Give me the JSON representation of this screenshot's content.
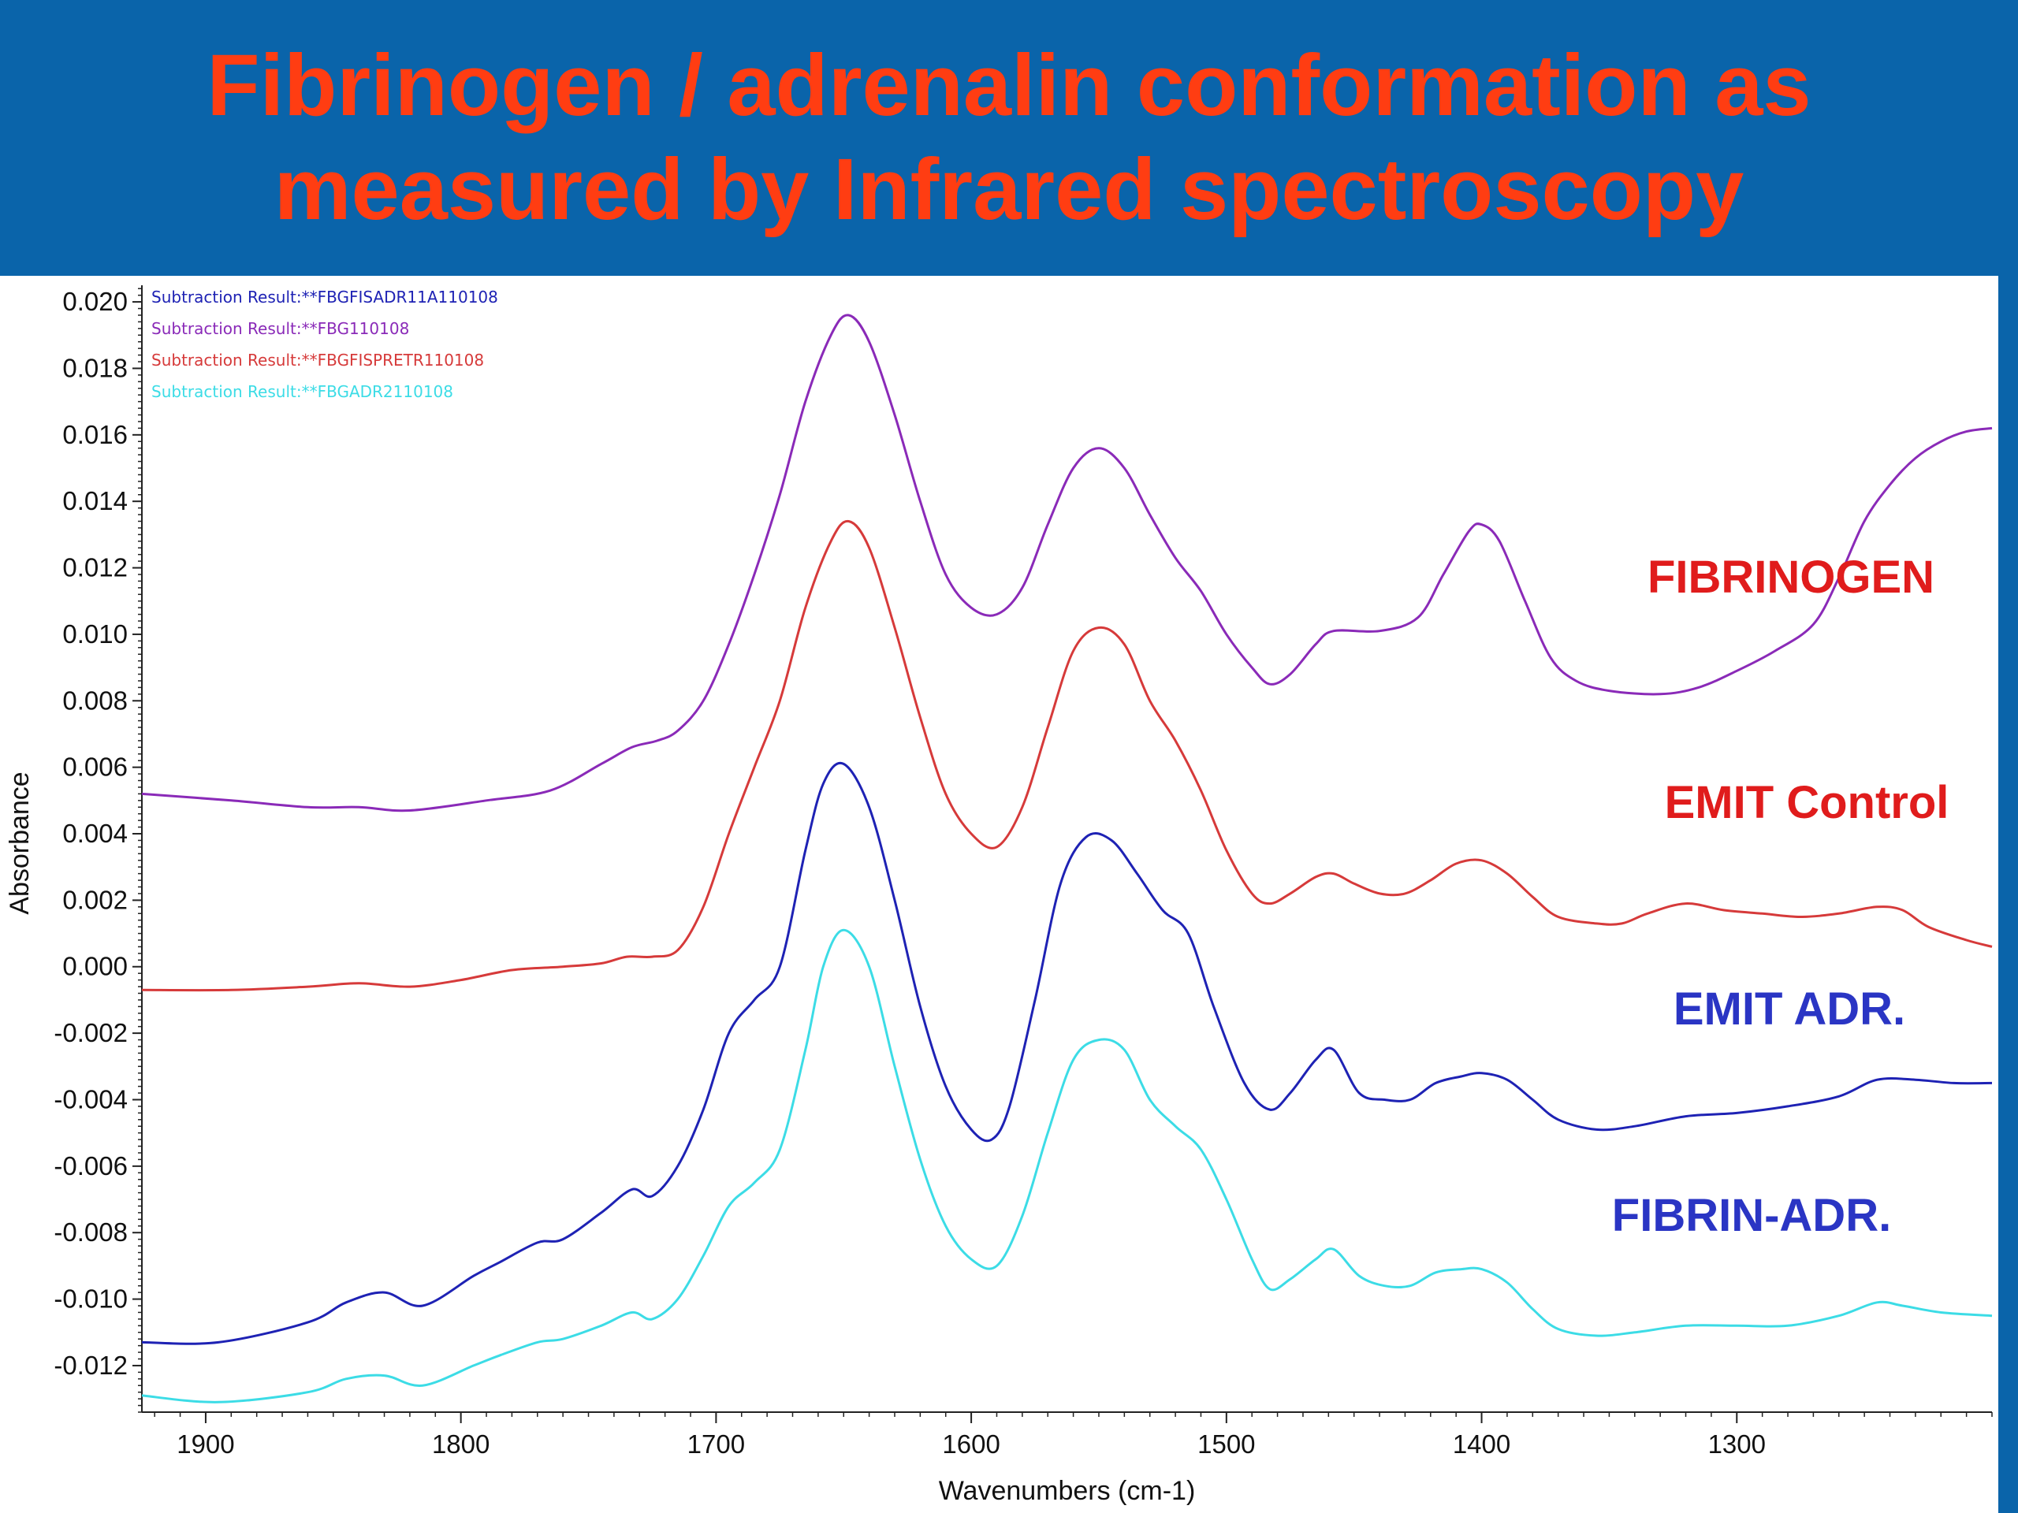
{
  "slide": {
    "title_line1": "Fibrinogen / adrenalin conformation as",
    "title_line2": "measured by Infrared spectroscopy",
    "title_color": "#ff3d12",
    "background": "#0a64aa"
  },
  "chart_data": {
    "type": "line",
    "title": "",
    "xlabel": "Wavenumbers (cm-1)",
    "ylabel": "Absorbance",
    "xlim": [
      1925,
      1200
    ],
    "ylim": [
      -0.0134,
      0.0205
    ],
    "x_reversed": true,
    "grid": false,
    "legend_position": "top-left",
    "x_ticks": [
      {
        "value": 1900,
        "label": "1900"
      },
      {
        "value": 1800,
        "label": "1800"
      },
      {
        "value": 1700,
        "label": "1700"
      },
      {
        "value": 1600,
        "label": "1600"
      },
      {
        "value": 1500,
        "label": "1500"
      },
      {
        "value": 1400,
        "label": "1400"
      },
      {
        "value": 1300,
        "label": "1300"
      }
    ],
    "y_ticks": [
      {
        "value": 0.02,
        "label": "0.020"
      },
      {
        "value": 0.018,
        "label": "0.018"
      },
      {
        "value": 0.016,
        "label": "0.016"
      },
      {
        "value": 0.014,
        "label": "0.014"
      },
      {
        "value": 0.012,
        "label": "0.012"
      },
      {
        "value": 0.01,
        "label": "0.010"
      },
      {
        "value": 0.008,
        "label": "0.008"
      },
      {
        "value": 0.006,
        "label": "0.006"
      },
      {
        "value": 0.004,
        "label": "0.004"
      },
      {
        "value": 0.002,
        "label": "0.002"
      },
      {
        "value": 0.0,
        "label": "0.000"
      },
      {
        "value": -0.002,
        "label": "-0.002"
      },
      {
        "value": -0.004,
        "label": "-0.004"
      },
      {
        "value": -0.006,
        "label": "-0.006"
      },
      {
        "value": -0.008,
        "label": "-0.008"
      },
      {
        "value": -0.01,
        "label": "-0.010"
      },
      {
        "value": -0.012,
        "label": "-0.012"
      }
    ],
    "series": [
      {
        "name": "Subtraction Result:**FBGFISADR11A110108",
        "color": "#1e22b4",
        "points": [
          [
            1925,
            -0.0113
          ],
          [
            1895,
            -0.0113
          ],
          [
            1860,
            -0.0107
          ],
          [
            1845,
            -0.0101
          ],
          [
            1830,
            -0.0098
          ],
          [
            1815,
            -0.0102
          ],
          [
            1795,
            -0.0093
          ],
          [
            1785,
            -0.0089
          ],
          [
            1770,
            -0.0083
          ],
          [
            1760,
            -0.0082
          ],
          [
            1745,
            -0.0074
          ],
          [
            1733,
            -0.0067
          ],
          [
            1725,
            -0.0069
          ],
          [
            1715,
            -0.006
          ],
          [
            1705,
            -0.0043
          ],
          [
            1695,
            -0.002
          ],
          [
            1685,
            -0.001
          ],
          [
            1675,
            0.0
          ],
          [
            1665,
            0.0035
          ],
          [
            1658,
            0.0055
          ],
          [
            1650,
            0.0061
          ],
          [
            1640,
            0.0048
          ],
          [
            1630,
            0.002
          ],
          [
            1620,
            -0.0012
          ],
          [
            1610,
            -0.0036
          ],
          [
            1600,
            -0.0049
          ],
          [
            1592,
            -0.0052
          ],
          [
            1585,
            -0.0042
          ],
          [
            1575,
            -0.001
          ],
          [
            1565,
            0.0025
          ],
          [
            1555,
            0.0039
          ],
          [
            1545,
            0.0038
          ],
          [
            1535,
            0.0028
          ],
          [
            1525,
            0.0017
          ],
          [
            1515,
            0.001
          ],
          [
            1505,
            -0.0012
          ],
          [
            1493,
            -0.0035
          ],
          [
            1483,
            -0.0043
          ],
          [
            1475,
            -0.0038
          ],
          [
            1465,
            -0.0028
          ],
          [
            1458,
            -0.0025
          ],
          [
            1448,
            -0.0038
          ],
          [
            1438,
            -0.004
          ],
          [
            1428,
            -0.004
          ],
          [
            1418,
            -0.0035
          ],
          [
            1408,
            -0.0033
          ],
          [
            1400,
            -0.0032
          ],
          [
            1390,
            -0.0034
          ],
          [
            1380,
            -0.004
          ],
          [
            1370,
            -0.0046
          ],
          [
            1355,
            -0.0049
          ],
          [
            1340,
            -0.0048
          ],
          [
            1320,
            -0.0045
          ],
          [
            1300,
            -0.0044
          ],
          [
            1280,
            -0.0042
          ],
          [
            1260,
            -0.0039
          ],
          [
            1245,
            -0.0034
          ],
          [
            1230,
            -0.0034
          ],
          [
            1215,
            -0.0035
          ],
          [
            1200,
            -0.0035
          ]
        ]
      },
      {
        "name": "Subtraction Result:**FBG110108",
        "color": "#8a2ab8",
        "points": [
          [
            1925,
            0.0052
          ],
          [
            1890,
            0.005
          ],
          [
            1860,
            0.0048
          ],
          [
            1840,
            0.0048
          ],
          [
            1820,
            0.0047
          ],
          [
            1790,
            0.005
          ],
          [
            1765,
            0.0053
          ],
          [
            1745,
            0.0061
          ],
          [
            1733,
            0.0066
          ],
          [
            1723,
            0.0068
          ],
          [
            1715,
            0.0071
          ],
          [
            1705,
            0.008
          ],
          [
            1695,
            0.0097
          ],
          [
            1685,
            0.0118
          ],
          [
            1675,
            0.0142
          ],
          [
            1665,
            0.017
          ],
          [
            1655,
            0.019
          ],
          [
            1648,
            0.0196
          ],
          [
            1640,
            0.0188
          ],
          [
            1630,
            0.0166
          ],
          [
            1620,
            0.014
          ],
          [
            1610,
            0.0118
          ],
          [
            1600,
            0.0108
          ],
          [
            1590,
            0.0106
          ],
          [
            1580,
            0.0114
          ],
          [
            1570,
            0.0133
          ],
          [
            1560,
            0.015
          ],
          [
            1550,
            0.0156
          ],
          [
            1540,
            0.015
          ],
          [
            1530,
            0.0136
          ],
          [
            1520,
            0.0123
          ],
          [
            1510,
            0.0113
          ],
          [
            1500,
            0.01
          ],
          [
            1490,
            0.009
          ],
          [
            1483,
            0.0085
          ],
          [
            1475,
            0.0088
          ],
          [
            1465,
            0.0097
          ],
          [
            1458,
            0.0101
          ],
          [
            1440,
            0.0101
          ],
          [
            1425,
            0.0105
          ],
          [
            1415,
            0.0118
          ],
          [
            1405,
            0.0131
          ],
          [
            1400,
            0.0133
          ],
          [
            1393,
            0.0128
          ],
          [
            1383,
            0.011
          ],
          [
            1373,
            0.0093
          ],
          [
            1363,
            0.0086
          ],
          [
            1350,
            0.0083
          ],
          [
            1330,
            0.0082
          ],
          [
            1315,
            0.0084
          ],
          [
            1300,
            0.0089
          ],
          [
            1285,
            0.0095
          ],
          [
            1270,
            0.0103
          ],
          [
            1260,
            0.0117
          ],
          [
            1250,
            0.0134
          ],
          [
            1240,
            0.0145
          ],
          [
            1230,
            0.0153
          ],
          [
            1220,
            0.0158
          ],
          [
            1210,
            0.0161
          ],
          [
            1200,
            0.0162
          ]
        ]
      },
      {
        "name": "Subtraction Result:**FBGFISPRETR110108",
        "color": "#d63a3a",
        "points": [
          [
            1925,
            -0.0007
          ],
          [
            1890,
            -0.0007
          ],
          [
            1860,
            -0.0006
          ],
          [
            1840,
            -0.0005
          ],
          [
            1820,
            -0.0006
          ],
          [
            1800,
            -0.0004
          ],
          [
            1780,
            -0.0001
          ],
          [
            1760,
            0.0
          ],
          [
            1745,
            0.0001
          ],
          [
            1735,
            0.0003
          ],
          [
            1725,
            0.0003
          ],
          [
            1715,
            0.0005
          ],
          [
            1705,
            0.0018
          ],
          [
            1695,
            0.004
          ],
          [
            1685,
            0.006
          ],
          [
            1675,
            0.008
          ],
          [
            1665,
            0.0108
          ],
          [
            1655,
            0.0128
          ],
          [
            1648,
            0.0134
          ],
          [
            1640,
            0.0126
          ],
          [
            1630,
            0.0102
          ],
          [
            1620,
            0.0075
          ],
          [
            1610,
            0.0052
          ],
          [
            1600,
            0.004
          ],
          [
            1590,
            0.0036
          ],
          [
            1580,
            0.0048
          ],
          [
            1570,
            0.0072
          ],
          [
            1560,
            0.0095
          ],
          [
            1550,
            0.0102
          ],
          [
            1540,
            0.0097
          ],
          [
            1530,
            0.008
          ],
          [
            1520,
            0.0068
          ],
          [
            1510,
            0.0053
          ],
          [
            1500,
            0.0035
          ],
          [
            1490,
            0.0022
          ],
          [
            1483,
            0.0019
          ],
          [
            1475,
            0.0022
          ],
          [
            1465,
            0.0027
          ],
          [
            1458,
            0.0028
          ],
          [
            1450,
            0.0025
          ],
          [
            1440,
            0.0022
          ],
          [
            1430,
            0.0022
          ],
          [
            1420,
            0.0026
          ],
          [
            1410,
            0.0031
          ],
          [
            1400,
            0.0032
          ],
          [
            1390,
            0.0028
          ],
          [
            1380,
            0.0021
          ],
          [
            1370,
            0.0015
          ],
          [
            1355,
            0.0013
          ],
          [
            1345,
            0.0013
          ],
          [
            1335,
            0.0016
          ],
          [
            1320,
            0.0019
          ],
          [
            1305,
            0.0017
          ],
          [
            1290,
            0.0016
          ],
          [
            1275,
            0.0015
          ],
          [
            1260,
            0.0016
          ],
          [
            1245,
            0.0018
          ],
          [
            1235,
            0.0017
          ],
          [
            1225,
            0.0012
          ],
          [
            1210,
            0.0008
          ],
          [
            1200,
            0.0006
          ]
        ]
      },
      {
        "name": "Subtraction Result:**FBGADR2110108",
        "color": "#3cdce6",
        "points": [
          [
            1925,
            -0.0129
          ],
          [
            1895,
            -0.0131
          ],
          [
            1860,
            -0.0128
          ],
          [
            1845,
            -0.0124
          ],
          [
            1830,
            -0.0123
          ],
          [
            1815,
            -0.0126
          ],
          [
            1795,
            -0.012
          ],
          [
            1785,
            -0.0117
          ],
          [
            1770,
            -0.0113
          ],
          [
            1760,
            -0.0112
          ],
          [
            1745,
            -0.0108
          ],
          [
            1733,
            -0.0104
          ],
          [
            1725,
            -0.0106
          ],
          [
            1715,
            -0.01
          ],
          [
            1705,
            -0.0087
          ],
          [
            1695,
            -0.0072
          ],
          [
            1685,
            -0.0065
          ],
          [
            1675,
            -0.0055
          ],
          [
            1665,
            -0.0025
          ],
          [
            1658,
            0.0
          ],
          [
            1650,
            0.0011
          ],
          [
            1640,
            0.0
          ],
          [
            1630,
            -0.003
          ],
          [
            1620,
            -0.0058
          ],
          [
            1610,
            -0.0078
          ],
          [
            1600,
            -0.0088
          ],
          [
            1590,
            -0.009
          ],
          [
            1580,
            -0.0075
          ],
          [
            1570,
            -0.005
          ],
          [
            1560,
            -0.0028
          ],
          [
            1550,
            -0.0022
          ],
          [
            1540,
            -0.0025
          ],
          [
            1530,
            -0.004
          ],
          [
            1520,
            -0.0048
          ],
          [
            1510,
            -0.0055
          ],
          [
            1500,
            -0.007
          ],
          [
            1490,
            -0.0088
          ],
          [
            1483,
            -0.0097
          ],
          [
            1475,
            -0.0094
          ],
          [
            1465,
            -0.0088
          ],
          [
            1458,
            -0.0085
          ],
          [
            1448,
            -0.0093
          ],
          [
            1438,
            -0.0096
          ],
          [
            1428,
            -0.0096
          ],
          [
            1418,
            -0.0092
          ],
          [
            1408,
            -0.0091
          ],
          [
            1400,
            -0.0091
          ],
          [
            1390,
            -0.0095
          ],
          [
            1380,
            -0.0103
          ],
          [
            1370,
            -0.0109
          ],
          [
            1355,
            -0.0111
          ],
          [
            1340,
            -0.011
          ],
          [
            1320,
            -0.0108
          ],
          [
            1300,
            -0.0108
          ],
          [
            1280,
            -0.0108
          ],
          [
            1260,
            -0.0105
          ],
          [
            1245,
            -0.0101
          ],
          [
            1235,
            -0.0102
          ],
          [
            1220,
            -0.0104
          ],
          [
            1200,
            -0.0105
          ]
        ]
      }
    ],
    "annotations": [
      {
        "text": "FIBRINOGEN",
        "color": "#e01c1c"
      },
      {
        "text": "EMIT Control",
        "color": "#e01c1c"
      },
      {
        "text": "EMIT ADR.",
        "color": "#2a35c4"
      },
      {
        "text": "FIBRIN-ADR.",
        "color": "#2a35c4"
      }
    ]
  }
}
